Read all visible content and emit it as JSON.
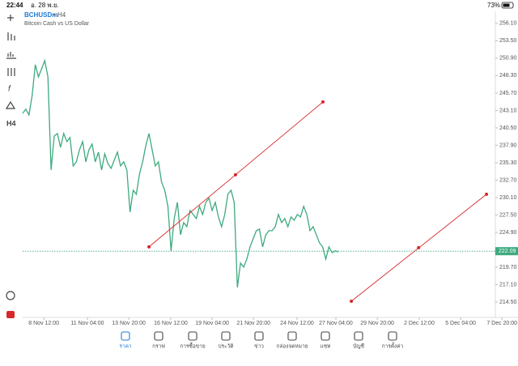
{
  "status_bar": {
    "time": "22:44",
    "date": "อ. 28 พ.ย.",
    "battery": "73%"
  },
  "toolbar": {
    "timeframe": "H4"
  },
  "chart_data": {
    "type": "line",
    "title": "BCHUSDm",
    "period": "• H4",
    "subtitle": "Bitcoin Cash vs US Dollar",
    "color": "#3daa7e",
    "x": [
      0,
      1,
      2,
      3,
      4,
      5,
      6,
      7,
      8,
      9,
      10,
      11,
      12,
      13,
      14,
      15,
      16,
      17,
      18,
      19,
      20,
      21,
      22,
      23,
      24,
      25,
      26,
      27,
      28,
      29,
      30,
      31,
      32,
      33,
      34,
      35,
      36,
      37,
      38,
      39,
      40,
      41,
      42,
      43,
      44,
      45,
      46,
      47,
      48,
      49,
      50,
      51,
      52,
      53,
      54,
      55,
      56,
      57,
      58,
      59,
      60,
      61,
      62,
      63,
      64,
      65,
      66,
      67,
      68,
      69,
      70,
      71,
      72,
      73,
      74,
      75,
      76,
      77,
      78,
      79,
      80,
      81,
      82,
      83,
      84,
      85,
      86,
      87,
      88,
      89,
      90,
      91,
      92,
      93,
      94,
      95,
      96,
      97,
      98,
      99,
      100
    ],
    "values": [
      242.68,
      243.28,
      242.44,
      245.34,
      249.93,
      248.12,
      249.33,
      250.54,
      248.12,
      234.22,
      239.29,
      239.66,
      237.6,
      239.66,
      238.45,
      239.05,
      234.82,
      235.43,
      237.24,
      238.45,
      235.43,
      237.24,
      238.09,
      235.43,
      236.88,
      234.22,
      236.63,
      235.18,
      234.46,
      235.67,
      236.88,
      234.82,
      235.43,
      234.22,
      227.93,
      231.19,
      230.59,
      233.61,
      235.43,
      237.84,
      239.66,
      237.24,
      234.82,
      235.43,
      232.4,
      231.19,
      228.78,
      222.13,
      226.96,
      229.38,
      224.54,
      226.36,
      225.75,
      228.17,
      227.57,
      226.96,
      228.78,
      227.57,
      229.38,
      229.99,
      228.17,
      229.38,
      227.2,
      225.75,
      227.57,
      230.59,
      231.19,
      229.38,
      216.69,
      220.31,
      219.71,
      220.92,
      222.73,
      223.94,
      225.15,
      225.39,
      222.73,
      224.54,
      225.15,
      225.15,
      225.75,
      227.57,
      226.36,
      226.96,
      225.75,
      227.2,
      226.72,
      227.57,
      227.2,
      228.78,
      227.57,
      225.15,
      225.75,
      224.54,
      223.34,
      222.73,
      220.92,
      222.73,
      221.88,
      222.13,
      222.0
    ],
    "current_price": 222.09,
    "xlim": [
      0,
      149.7
    ],
    "ylim": [
      212.2,
      257.9
    ],
    "xticks": [
      {
        "value": 6.7,
        "label": "8 Nov 12:00"
      },
      {
        "value": 20.5,
        "label": "11 Nov 04:00"
      },
      {
        "value": 33.6,
        "label": "13 Nov 20:00"
      },
      {
        "value": 46.9,
        "label": "16 Nov 12:00"
      },
      {
        "value": 60,
        "label": "19 Nov 04:00"
      },
      {
        "value": 73.1,
        "label": "21 Nov 20:00"
      },
      {
        "value": 86.9,
        "label": "24 Nov 12:00"
      },
      {
        "value": 99.2,
        "label": "27 Nov 04:00"
      },
      {
        "value": 112.3,
        "label": "29 Nov 20:00"
      },
      {
        "value": 125.6,
        "label": "2 Dec 12:00"
      },
      {
        "value": 138.7,
        "label": "5 Dec 04:00"
      },
      {
        "value": 151.8,
        "label": "7 Dec 20:00"
      }
    ],
    "yticks": [
      {
        "value": 256.1,
        "label": "256.10"
      },
      {
        "value": 253.5,
        "label": "253.50"
      },
      {
        "value": 250.9,
        "label": "250.90"
      },
      {
        "value": 248.3,
        "label": "248.30"
      },
      {
        "value": 245.7,
        "label": "245.70"
      },
      {
        "value": 243.1,
        "label": "243.10"
      },
      {
        "value": 240.5,
        "label": "240.50"
      },
      {
        "value": 237.9,
        "label": "237.90"
      },
      {
        "value": 235.3,
        "label": "235.30"
      },
      {
        "value": 232.7,
        "label": "232.70"
      },
      {
        "value": 230.1,
        "label": "230.10"
      },
      {
        "value": 227.5,
        "label": "227.50"
      },
      {
        "value": 224.9,
        "label": "224.90"
      },
      {
        "value": 219.7,
        "label": "219.70"
      },
      {
        "value": 217.1,
        "label": "217.10"
      },
      {
        "value": 214.5,
        "label": "214.50"
      }
    ],
    "trend_lines": [
      {
        "color": "#d62828",
        "x": [
          40,
          67.4,
          95.1
        ],
        "values": [
          222.73,
          233.49,
          244.37
        ]
      },
      {
        "color": "#d62828",
        "x": [
          104.1,
          125.4,
          146.9
        ],
        "values": [
          214.62,
          222.61,
          230.59
        ]
      }
    ]
  },
  "bottom_nav": [
    "ราคา",
    "กราฟ",
    "การซื้อขาย",
    "ประวัติ",
    "ข่าว",
    "กล่องจดหมาย",
    "แชท",
    "บัญชี",
    "การตั้งค่า"
  ]
}
